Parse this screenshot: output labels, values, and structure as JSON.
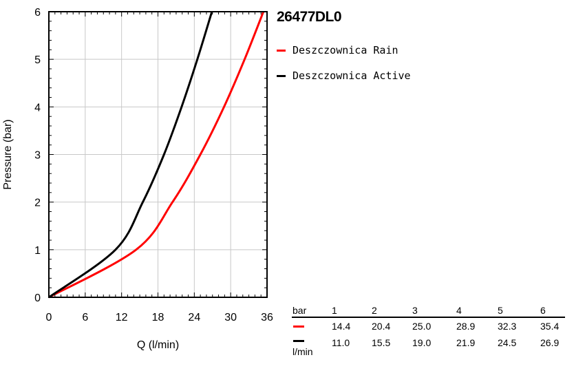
{
  "chart_data": {
    "type": "line",
    "title": "26477DL0",
    "xlabel": "Q (l/min)",
    "ylabel": "Pressure (bar)",
    "xlim": [
      0,
      36
    ],
    "ylim": [
      0,
      6
    ],
    "xticks": [
      0,
      6,
      12,
      18,
      24,
      30,
      36
    ],
    "yticks": [
      0,
      1,
      2,
      3,
      4,
      5,
      6
    ],
    "grid": true,
    "legend_position": "right-top",
    "series": [
      {
        "name": "Deszczownica Rain",
        "color": "#ff0000",
        "x": [
          0,
          14.4,
          20.4,
          25.0,
          28.9,
          32.3,
          35.4
        ],
        "y": [
          0,
          1,
          2,
          3,
          4,
          5,
          6
        ]
      },
      {
        "name": "Deszczownica Active",
        "color": "#000000",
        "x": [
          0,
          11.0,
          15.5,
          19.0,
          21.9,
          24.5,
          26.9
        ],
        "y": [
          0,
          1,
          2,
          3,
          4,
          5,
          6
        ]
      }
    ]
  },
  "table": {
    "header_label": "bar",
    "pressures": [
      "1",
      "2",
      "3",
      "4",
      "5",
      "6"
    ],
    "unit_label": "l/min",
    "rows": [
      {
        "color": "#ff0000",
        "values": [
          "14.4",
          "20.4",
          "25.0",
          "28.9",
          "32.3",
          "35.4"
        ]
      },
      {
        "color": "#000000",
        "values": [
          "11.0",
          "15.5",
          "19.0",
          "21.9",
          "24.5",
          "26.9"
        ]
      }
    ]
  }
}
